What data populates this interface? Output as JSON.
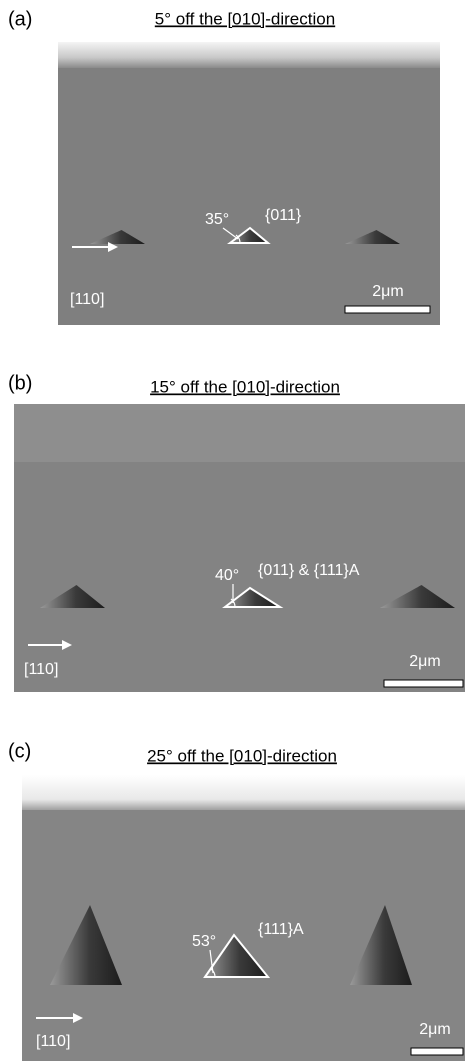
{
  "panels": [
    {
      "label": "(a)",
      "title": "5° off the [010]-direction",
      "angle": "35°",
      "facet": "{011}",
      "direction": "[110]",
      "scale": "2μm"
    },
    {
      "label": "(b)",
      "title": "15° off the [010]-direction",
      "angle": "40°",
      "facet": "{011} & {111}A",
      "direction": "[110]",
      "scale": "2μm"
    },
    {
      "label": "(c)",
      "title": "25° off the [010]-direction",
      "angle": "53°",
      "facet": "{111}A",
      "direction": "[110]",
      "scale": "2μm"
    }
  ]
}
